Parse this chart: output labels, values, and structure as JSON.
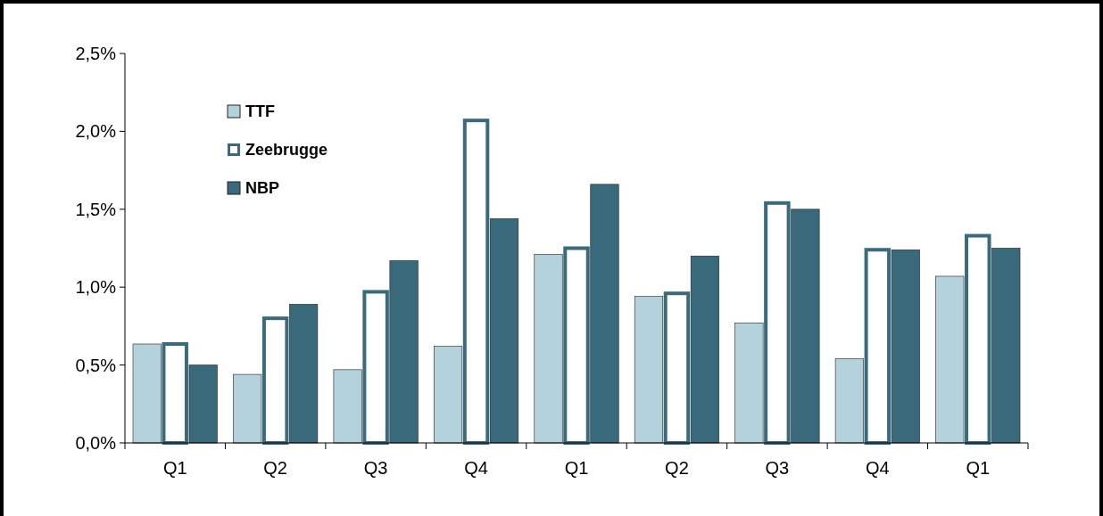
{
  "chart_data": {
    "type": "bar",
    "categories": [
      "Q1",
      "Q2",
      "Q3",
      "Q4",
      "Q1",
      "Q2",
      "Q3",
      "Q4",
      "Q1"
    ],
    "series": [
      {
        "name": "TTF",
        "color": "#b4d2dc",
        "values": [
          0.635,
          0.44,
          0.47,
          0.62,
          1.21,
          0.94,
          0.77,
          0.54,
          1.07
        ]
      },
      {
        "name": "Zeebrugge",
        "color": "#3a6b7d",
        "colors": [
          "#ffffff",
          "#ffffff",
          "#ffffff",
          "#ffffff",
          "#ffffff",
          "#ffffff",
          "#ffffff",
          "#ffffff",
          "#ffffff"
        ],
        "values": [
          0.635,
          0.8,
          0.97,
          2.07,
          1.25,
          0.96,
          1.54,
          1.24,
          1.33
        ]
      },
      {
        "name": "NBP",
        "color": "#386a7c",
        "values": [
          0.5,
          0.89,
          1.17,
          1.44,
          1.66,
          1.2,
          1.5,
          1.24,
          1.25
        ]
      }
    ],
    "ylim": [
      0,
      2.5
    ],
    "yticks": [
      {
        "value": 0,
        "label": "0,0%"
      },
      {
        "value": 0.5,
        "label": "0,5%"
      },
      {
        "value": 1,
        "label": "1,0%"
      },
      {
        "value": 1.5,
        "label": "1,5%"
      },
      {
        "value": 2,
        "label": "2,0%"
      },
      {
        "value": 2.5,
        "label": "2,5%"
      }
    ],
    "grid": false,
    "legend": "top left"
  }
}
